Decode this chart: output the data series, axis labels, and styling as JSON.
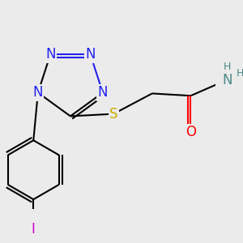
{
  "background_color": "#ebebeb",
  "atom_colors": {
    "N": "#2222ee",
    "S": "#ccaa00",
    "O": "#ff0000",
    "Namide": "#4a8a8a",
    "C": "#000000",
    "I": "#cc00cc"
  },
  "bond_lw": 1.5,
  "font_size": 12,
  "font_size_small": 9
}
